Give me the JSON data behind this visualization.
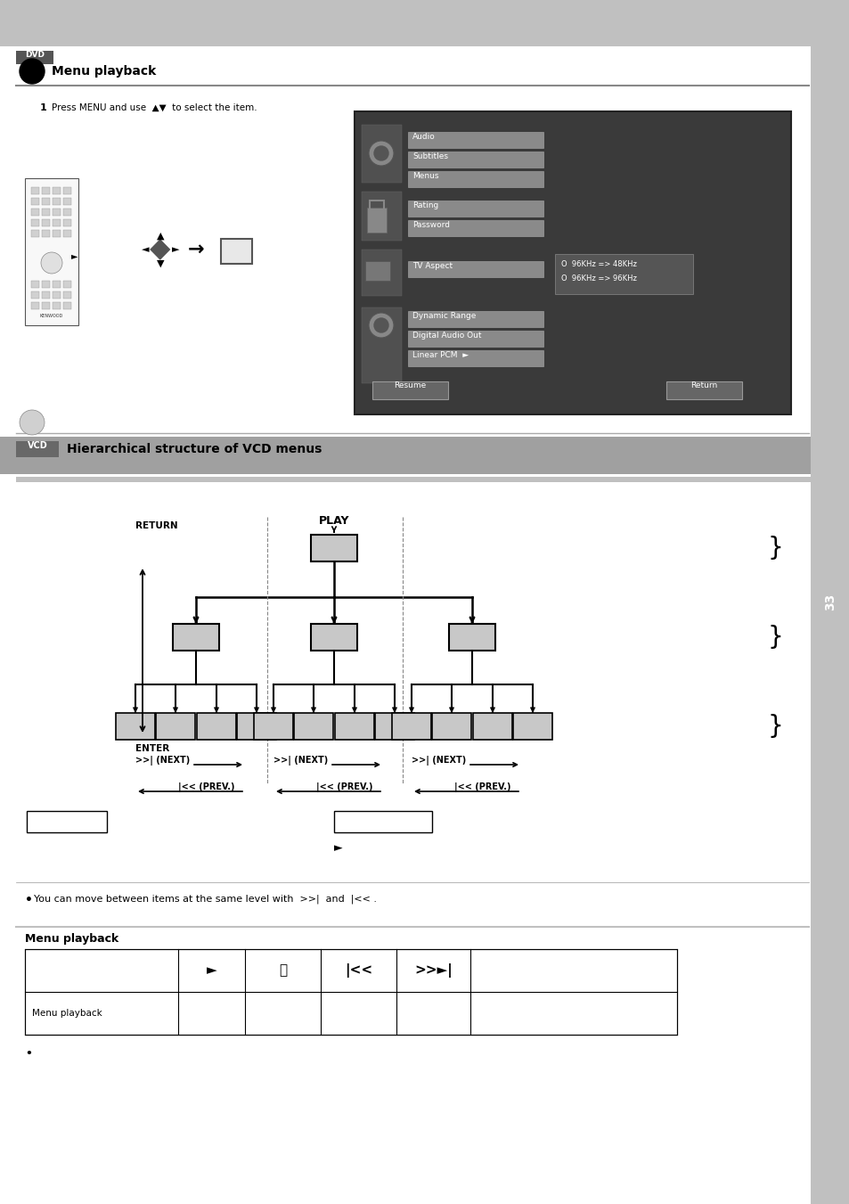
{
  "page_bg": "#ffffff",
  "header_bg": "#c0c0c0",
  "black_tab_color": "#000000",
  "section1_title": "Menu playback",
  "section2_title": "Hierarchical structure of VCD menus",
  "play_label": "PLAY",
  "return_label": "RETURN",
  "enter_label": "ENTER",
  "next_label": ">>| (NEXT)",
  "prev_label": "|<< (PREV.)",
  "box_fill": "#c8c8c8",
  "box_edge": "#000000",
  "dotted_color": "#888888",
  "note_text": "You can move between items at the same level with  >>|  and  |<< .",
  "radio1": "O  96KHz => 48KHz",
  "radio2": "O  96KHz => 96KHz",
  "btn_resume": "Resume",
  "btn_return": "Return",
  "step1_text": "Press MENU and use",
  "menu_items": [
    "Audio",
    "Subtitles",
    "Menus",
    "Rating",
    "Password",
    "TV Aspect",
    "Dynamic Range",
    "Digital Audio Out",
    "Linear PCM  ►"
  ],
  "play_starts": "►",
  "sidebar_color": "#c8c8c8",
  "gray_bar_color": "#a8a8a8"
}
